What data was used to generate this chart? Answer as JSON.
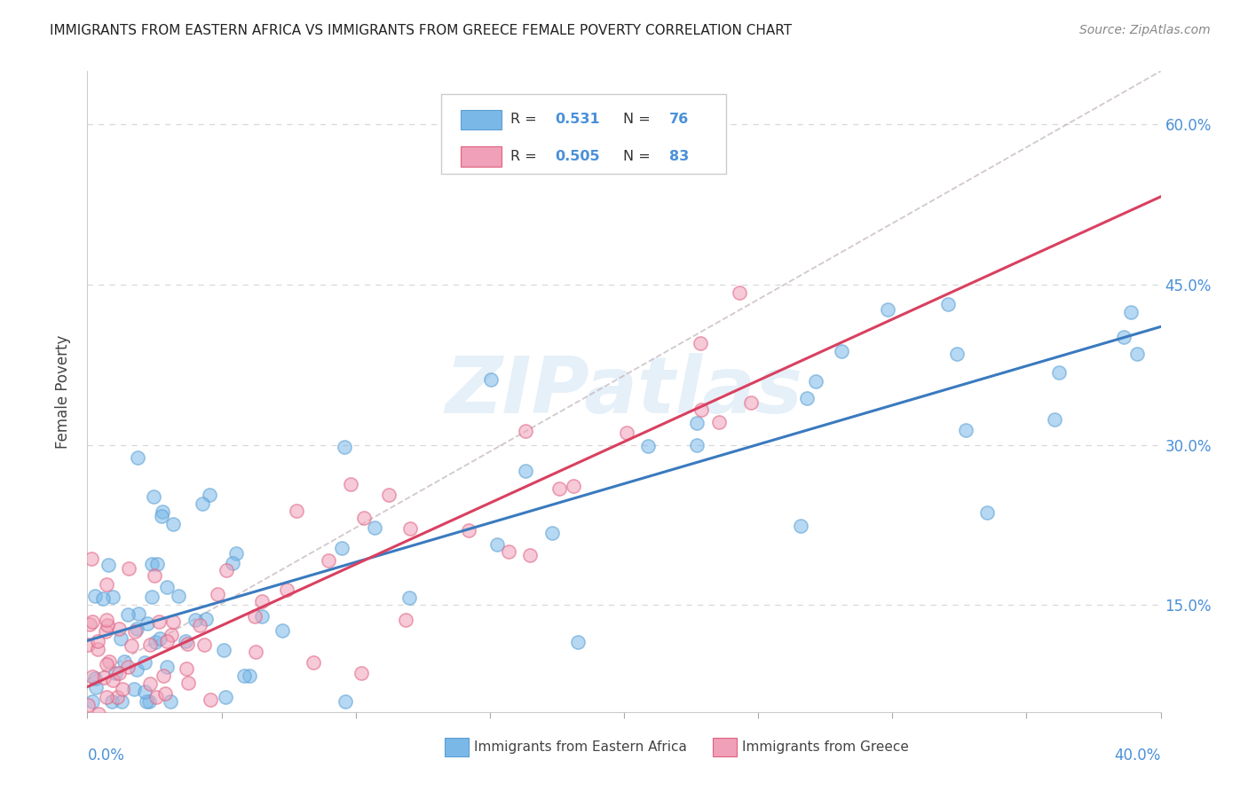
{
  "title": "IMMIGRANTS FROM EASTERN AFRICA VS IMMIGRANTS FROM GREECE FEMALE POVERTY CORRELATION CHART",
  "source": "Source: ZipAtlas.com",
  "ylabel": "Female Poverty",
  "yticks": [
    0.15,
    0.3,
    0.45,
    0.6
  ],
  "ytick_labels": [
    "15.0%",
    "30.0%",
    "45.0%",
    "60.0%"
  ],
  "xlim": [
    0.0,
    0.4
  ],
  "ylim": [
    0.05,
    0.65
  ],
  "legend_blue_r": "0.531",
  "legend_blue_n": "76",
  "legend_pink_r": "0.505",
  "legend_pink_n": "83",
  "blue_scatter_color": "#7ab8e8",
  "blue_edge_color": "#5a9fd4",
  "pink_scatter_color": "#f0a0b8",
  "pink_edge_color": "#e06080",
  "blue_line_color": "#3a7abf",
  "pink_line_color": "#d94060",
  "dash_line_color": "#c0b0b8",
  "watermark": "ZIPatlas",
  "watermark_color": "#c8dff0",
  "grid_color": "#d8d8d8",
  "tick_color": "#4a90d9",
  "title_color": "#222222",
  "source_color": "#888888",
  "label_color": "#444444"
}
